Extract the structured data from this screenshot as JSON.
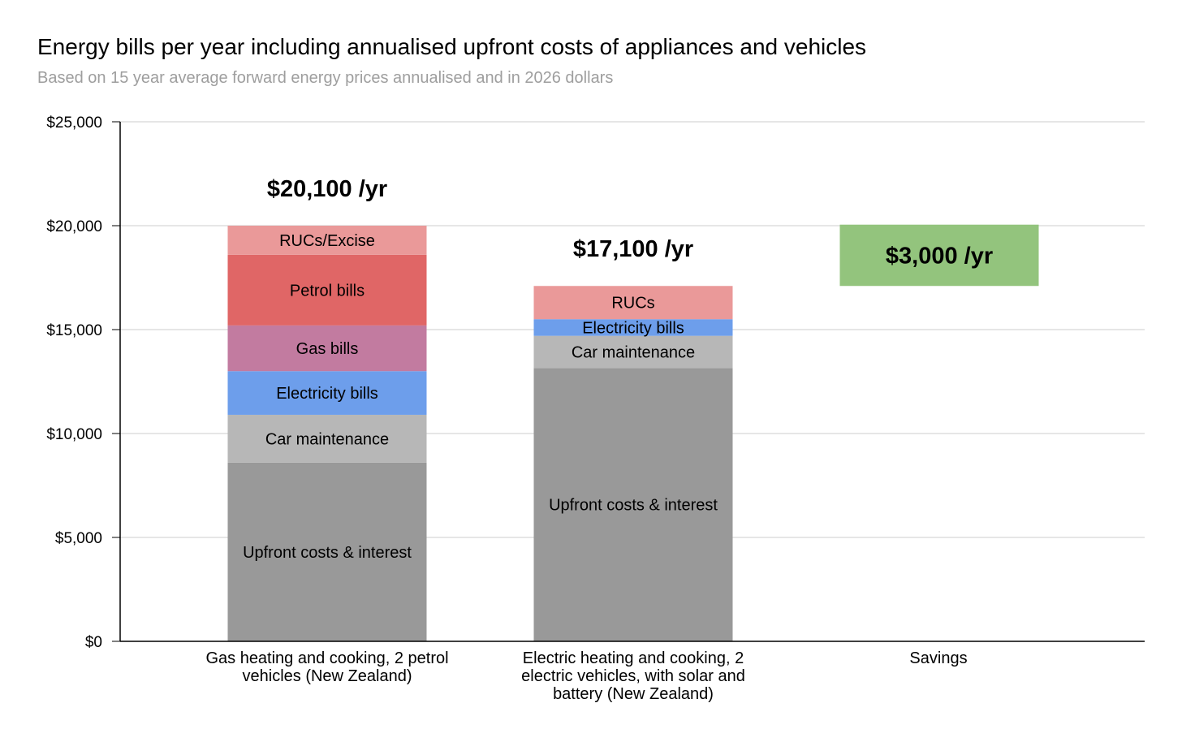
{
  "chart_data": {
    "type": "bar",
    "stacked": true,
    "title": "Energy bills per year including annualised upfront costs of appliances and vehicles",
    "subtitle": "Based on 15 year average forward energy prices annualised and in 2026 dollars",
    "ylim": [
      0,
      25000
    ],
    "yticks": [
      {
        "value": 0,
        "label": "$0"
      },
      {
        "value": 5000,
        "label": "$5,000"
      },
      {
        "value": 10000,
        "label": "$10,000"
      },
      {
        "value": 15000,
        "label": "$15,000"
      },
      {
        "value": 20000,
        "label": "$20,000"
      },
      {
        "value": 25000,
        "label": "$25,000"
      }
    ],
    "grid": true,
    "legend": "none",
    "categories": [
      "Gas heating and cooking, 2 petrol vehicles (New Zealand)",
      "Electric heating and cooking, 2 electric vehicles, with solar and battery (New Zealand)",
      "Savings"
    ],
    "bars": [
      {
        "total_label": "$20,100 /yr",
        "segments": [
          {
            "label": "Upfront costs & interest",
            "value": 8600,
            "color": "#999999"
          },
          {
            "label": "Car maintenance",
            "value": 2300,
            "color": "#b7b7b7"
          },
          {
            "label": "Electricity bills",
            "value": 2100,
            "color": "#6d9eeb"
          },
          {
            "label": "Gas bills",
            "value": 2200,
            "color": "#c27ba0"
          },
          {
            "label": "Petrol bills",
            "value": 3400,
            "color": "#e06666"
          },
          {
            "label": "RUCs/Excise",
            "value": 1400,
            "color": "#ea9999"
          }
        ]
      },
      {
        "total_label": "$17,100 /yr",
        "segments": [
          {
            "label": "Upfront costs & interest",
            "value": 13150,
            "color": "#999999"
          },
          {
            "label": "Car maintenance",
            "value": 1550,
            "color": "#b7b7b7"
          },
          {
            "label": "Electricity bills",
            "value": 800,
            "color": "#6d9eeb"
          },
          {
            "label": "RUCs",
            "value": 1600,
            "color": "#ea9999"
          }
        ]
      },
      {
        "total_label": "",
        "segments": [
          {
            "label": "",
            "value": 17100,
            "color": "none"
          },
          {
            "label": "$3,000 /yr",
            "value": 2950,
            "color": "#93c47d"
          }
        ]
      }
    ]
  }
}
